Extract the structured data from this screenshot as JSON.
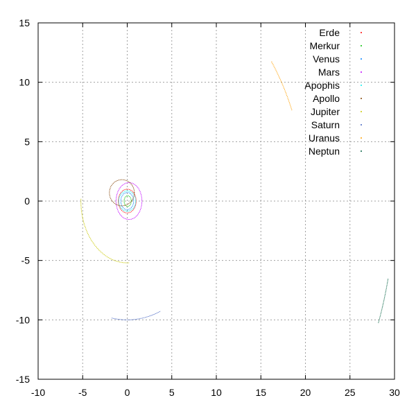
{
  "chart_data": {
    "type": "scatter",
    "title": "",
    "xlabel": "",
    "ylabel": "",
    "xlim": [
      -10,
      30
    ],
    "ylim": [
      -15,
      15
    ],
    "xticks": [
      -10,
      -5,
      0,
      5,
      10,
      15,
      20,
      25,
      30
    ],
    "yticks": [
      -15,
      -10,
      -5,
      0,
      5,
      10,
      15
    ],
    "grid": true,
    "legend_position": "top-right",
    "series": [
      {
        "name": "Erde",
        "color": "#ff0000",
        "shape": "ellipse",
        "center": [
          0,
          0
        ],
        "radii": [
          1.0,
          1.0
        ]
      },
      {
        "name": "Merkur",
        "color": "#00c000",
        "shape": "ellipse",
        "center": [
          0.05,
          0
        ],
        "radii": [
          0.4,
          0.45
        ]
      },
      {
        "name": "Venus",
        "color": "#0080ff",
        "shape": "ellipse",
        "center": [
          0,
          0
        ],
        "radii": [
          0.72,
          0.72
        ]
      },
      {
        "name": "Mars",
        "color": "#c000ff",
        "shape": "ellipse",
        "center": [
          0.2,
          0
        ],
        "radii": [
          1.45,
          1.55
        ]
      },
      {
        "name": "Apophis",
        "color": "#00eeee",
        "shape": "ellipse",
        "center": [
          0,
          0
        ],
        "radii": [
          0.95,
          0.85
        ]
      },
      {
        "name": "Apollo",
        "color": "#804000",
        "shape": "ellipse",
        "center": [
          -0.6,
          0.7
        ],
        "radii": [
          1.4,
          1.1
        ]
      },
      {
        "name": "Jupiter",
        "color": "#c8c800",
        "shape": "arc",
        "center": [
          0,
          0
        ],
        "radius": 5.2,
        "theta_deg": [
          178,
          273
        ]
      },
      {
        "name": "Saturn",
        "color": "#4060c0",
        "shape": "arc",
        "center": [
          0,
          0
        ],
        "radius": 10.0,
        "theta_deg": [
          260,
          292
        ]
      },
      {
        "name": "Uranus",
        "color": "#ffa000",
        "shape": "arc",
        "center": [
          0,
          0
        ],
        "radius": 20.0,
        "theta_deg": [
          22.5,
          36
        ]
      },
      {
        "name": "Neptun",
        "color": "#006040",
        "shape": "arc",
        "center": [
          0,
          0
        ],
        "radius": 30.0,
        "theta_deg": [
          -20,
          -12.5
        ]
      }
    ]
  }
}
